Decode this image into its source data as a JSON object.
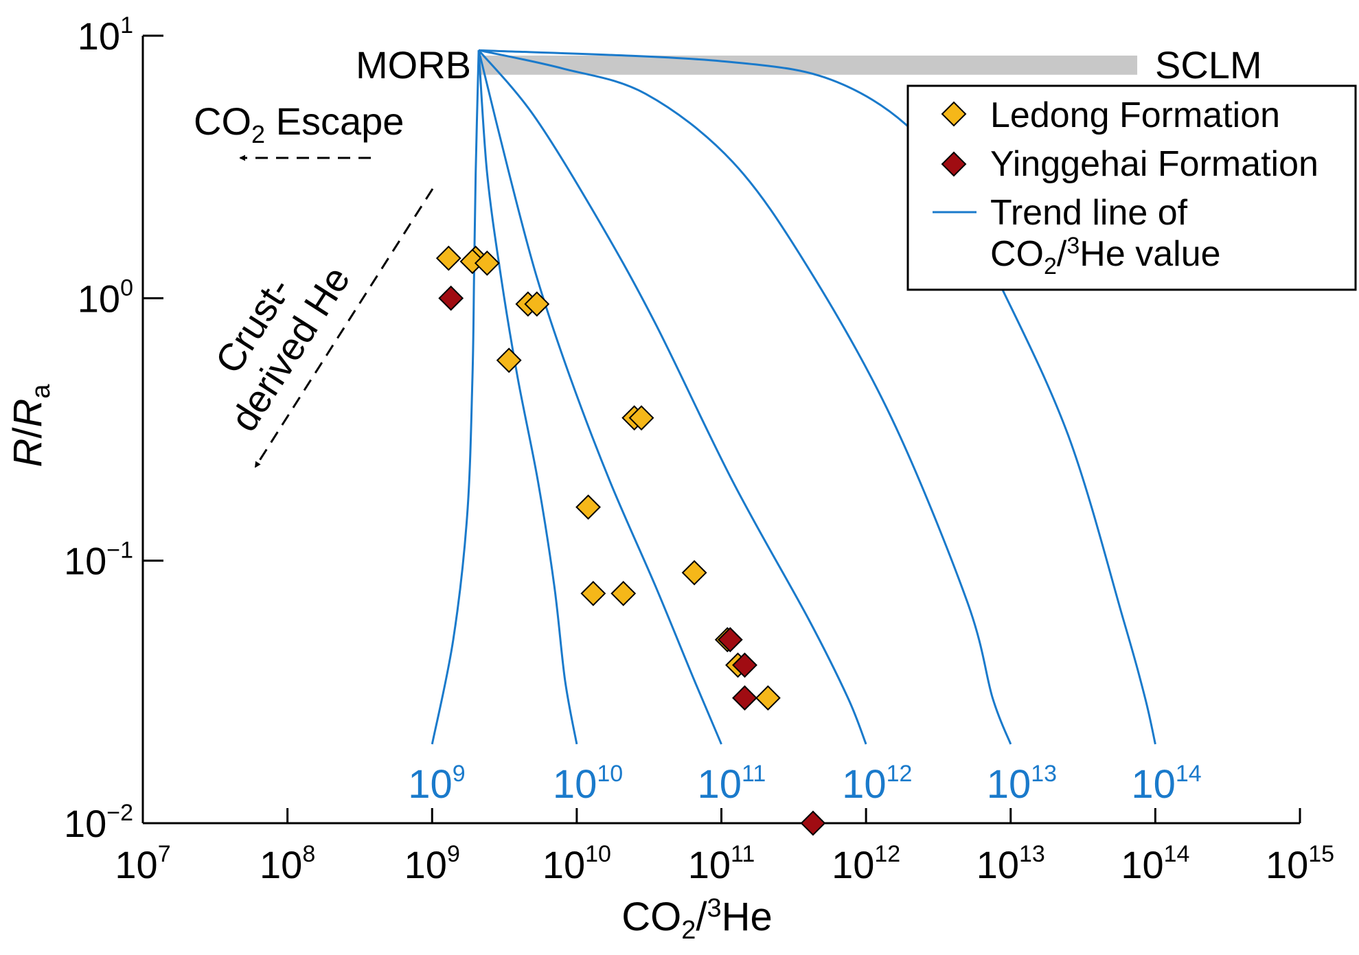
{
  "chart_data": {
    "type": "scatter",
    "xlabel": "CO2/3He",
    "ylabel": "R/Ra",
    "x_scale": "log",
    "y_scale": "log",
    "xlim": [
      10000000.0,
      1000000000000000.0
    ],
    "ylim": [
      0.01,
      10
    ],
    "x_ticks": [
      {
        "base": "10",
        "exp": "7"
      },
      {
        "base": "10",
        "exp": "8"
      },
      {
        "base": "10",
        "exp": "9"
      },
      {
        "base": "10",
        "exp": "10"
      },
      {
        "base": "10",
        "exp": "11"
      },
      {
        "base": "10",
        "exp": "12"
      },
      {
        "base": "10",
        "exp": "13"
      },
      {
        "base": "10",
        "exp": "14"
      },
      {
        "base": "10",
        "exp": "15"
      }
    ],
    "y_ticks": [
      {
        "value": 10,
        "base": "10",
        "exp": "1"
      },
      {
        "value": 1,
        "base": "10",
        "exp": "0"
      },
      {
        "value": 0.1,
        "base": "10",
        "exp": "−1"
      },
      {
        "value": 0.01,
        "base": "10",
        "exp": "−2"
      }
    ],
    "series": [
      {
        "name": "Ledong Formation",
        "color": "#f5b719",
        "marker": "diamond",
        "points": [
          [
            1300000000.0,
            1.42
          ],
          [
            2000000000.0,
            1.42
          ],
          [
            1900000000.0,
            1.38
          ],
          [
            2400000000.0,
            1.36
          ],
          [
            4600000000.0,
            0.95
          ],
          [
            5300000000.0,
            0.95
          ],
          [
            3400000000.0,
            0.58
          ],
          [
            25000000000.0,
            0.35
          ],
          [
            28000000000.0,
            0.35
          ],
          [
            12000000000.0,
            0.16
          ],
          [
            65000000000.0,
            0.09
          ],
          [
            13000000000.0,
            0.075
          ],
          [
            21000000000.0,
            0.075
          ],
          [
            110000000000.0,
            0.05
          ],
          [
            130000000000.0,
            0.04
          ],
          [
            210000000000.0,
            0.03
          ]
        ]
      },
      {
        "name": "Yinggehai Formation",
        "color": "#a00c12",
        "marker": "diamond",
        "points": [
          [
            1350000000.0,
            1.0
          ],
          [
            115000000000.0,
            0.05
          ],
          [
            145000000000.0,
            0.04
          ],
          [
            145000000000.0,
            0.03
          ],
          [
            430000000000.0,
            0.01
          ]
        ]
      }
    ],
    "trend_lines": {
      "legend_label_line1": "Trend line of",
      "legend_label_line2": "CO2/3He value",
      "color": "#1a7acb",
      "origin": [
        2100000000.0,
        8.8
      ],
      "curves": [
        {
          "base": "10",
          "exp": "9",
          "points": [
            [
              2100000000.0,
              8.8
            ],
            [
              2000000000.0,
              3
            ],
            [
              1950000000.0,
              1.2
            ],
            [
              1900000000.0,
              0.5
            ],
            [
              1750000000.0,
              0.15
            ],
            [
              1400000000.0,
              0.05
            ],
            [
              1000000000.0,
              0.02
            ]
          ]
        },
        {
          "base": "10",
          "exp": "10",
          "points": [
            [
              2100000000.0,
              8.8
            ],
            [
              2400000000.0,
              3
            ],
            [
              3000000000.0,
              1.2
            ],
            [
              3900000000.0,
              0.5
            ],
            [
              5400000000.0,
              0.2
            ],
            [
              7000000000.0,
              0.08
            ],
            [
              8300000000.0,
              0.035
            ],
            [
              10000000000.0,
              0.02
            ]
          ]
        },
        {
          "base": "10",
          "exp": "11",
          "points": [
            [
              2100000000.0,
              8.8
            ],
            [
              3400000000.0,
              3
            ],
            [
              5300000000.0,
              1.2
            ],
            [
              9000000000.0,
              0.5
            ],
            [
              17000000000.0,
              0.2
            ],
            [
              35000000000.0,
              0.08
            ],
            [
              65000000000.0,
              0.035
            ],
            [
              100000000000.0,
              0.02
            ]
          ]
        },
        {
          "base": "10",
          "exp": "12",
          "points": [
            [
              2100000000.0,
              8.8
            ],
            [
              5000000000.0,
              5
            ],
            [
              14000000000.0,
              2
            ],
            [
              35000000000.0,
              0.8
            ],
            [
              120000000000.0,
              0.2
            ],
            [
              400000000000.0,
              0.06
            ],
            [
              750000000000.0,
              0.03
            ],
            [
              1000000000000.0,
              0.02
            ]
          ]
        },
        {
          "base": "10",
          "exp": "13",
          "points": [
            [
              2100000000.0,
              8.8
            ],
            [
              8000000000.0,
              7.5
            ],
            [
              30000000000.0,
              6
            ],
            [
              120000000000.0,
              3.3
            ],
            [
              400000000000.0,
              1.3
            ],
            [
              1500000000000.0,
              0.35
            ],
            [
              5000000000000.0,
              0.07
            ],
            [
              7500000000000.0,
              0.03
            ],
            [
              10000000000000.0,
              0.02
            ]
          ]
        },
        {
          "base": "10",
          "exp": "14",
          "points": [
            [
              2100000000.0,
              8.8
            ],
            [
              100000000000.0,
              8.0
            ],
            [
              700000000000.0,
              6.5
            ],
            [
              3000000000000.0,
              3.5
            ],
            [
              8000000000000.0,
              1.2
            ],
            [
              25000000000000.0,
              0.3
            ],
            [
              60000000000000.0,
              0.06
            ],
            [
              85000000000000.0,
              0.03
            ],
            [
              100000000000000.0,
              0.02
            ]
          ]
        }
      ]
    },
    "sclm_band": {
      "label": "SCLM",
      "x_range": [
        2100000000.0,
        75000000000000.0
      ],
      "y_range": [
        7.1,
        8.4
      ],
      "color": "#c8c8c8"
    },
    "annotations": {
      "morb": "MORB",
      "co2_escape": "CO2 Escape",
      "crust_line1": "Crust-",
      "crust_line2": "derived He"
    },
    "legend_position": "top-right"
  }
}
